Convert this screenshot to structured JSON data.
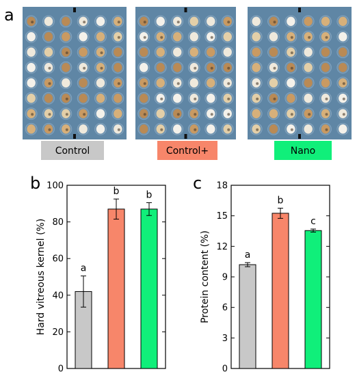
{
  "panel_a": {
    "letter": "a",
    "tray_color": "#5f86a5",
    "tags": [
      {
        "label": "Control",
        "color": "#c8c8c8"
      },
      {
        "label": "Control+",
        "color": "#f7866a"
      },
      {
        "label": "Nano",
        "color": "#10ef7a"
      }
    ]
  },
  "chart_data": [
    {
      "type": "bar",
      "panel": "b",
      "categories": [
        "Control",
        "Control+",
        "Nano"
      ],
      "values": [
        42,
        87,
        87
      ],
      "errors": [
        8.5,
        5.5,
        3.5
      ],
      "significance": [
        "a",
        "b",
        "b"
      ],
      "colors": [
        "#c8c8c8",
        "#f7866a",
        "#10ef7a"
      ],
      "ylabel": "Hard vitreous kernel (%)",
      "ylim": [
        0,
        100
      ],
      "yticks": [
        0,
        20,
        40,
        60,
        80,
        100
      ],
      "xlabel": "",
      "grid": false
    },
    {
      "type": "bar",
      "panel": "c",
      "categories": [
        "Control",
        "Control+",
        "Nano"
      ],
      "values": [
        10.2,
        15.25,
        13.55
      ],
      "errors": [
        0.2,
        0.5,
        0.15
      ],
      "significance": [
        "a",
        "b",
        "c"
      ],
      "colors": [
        "#c8c8c8",
        "#f7866a",
        "#10ef7a"
      ],
      "ylabel": "Protein content (%)",
      "ylim": [
        0,
        18
      ],
      "yticks": [
        0,
        3,
        6,
        9,
        12,
        15,
        18
      ],
      "xlabel": "",
      "grid": false
    }
  ]
}
